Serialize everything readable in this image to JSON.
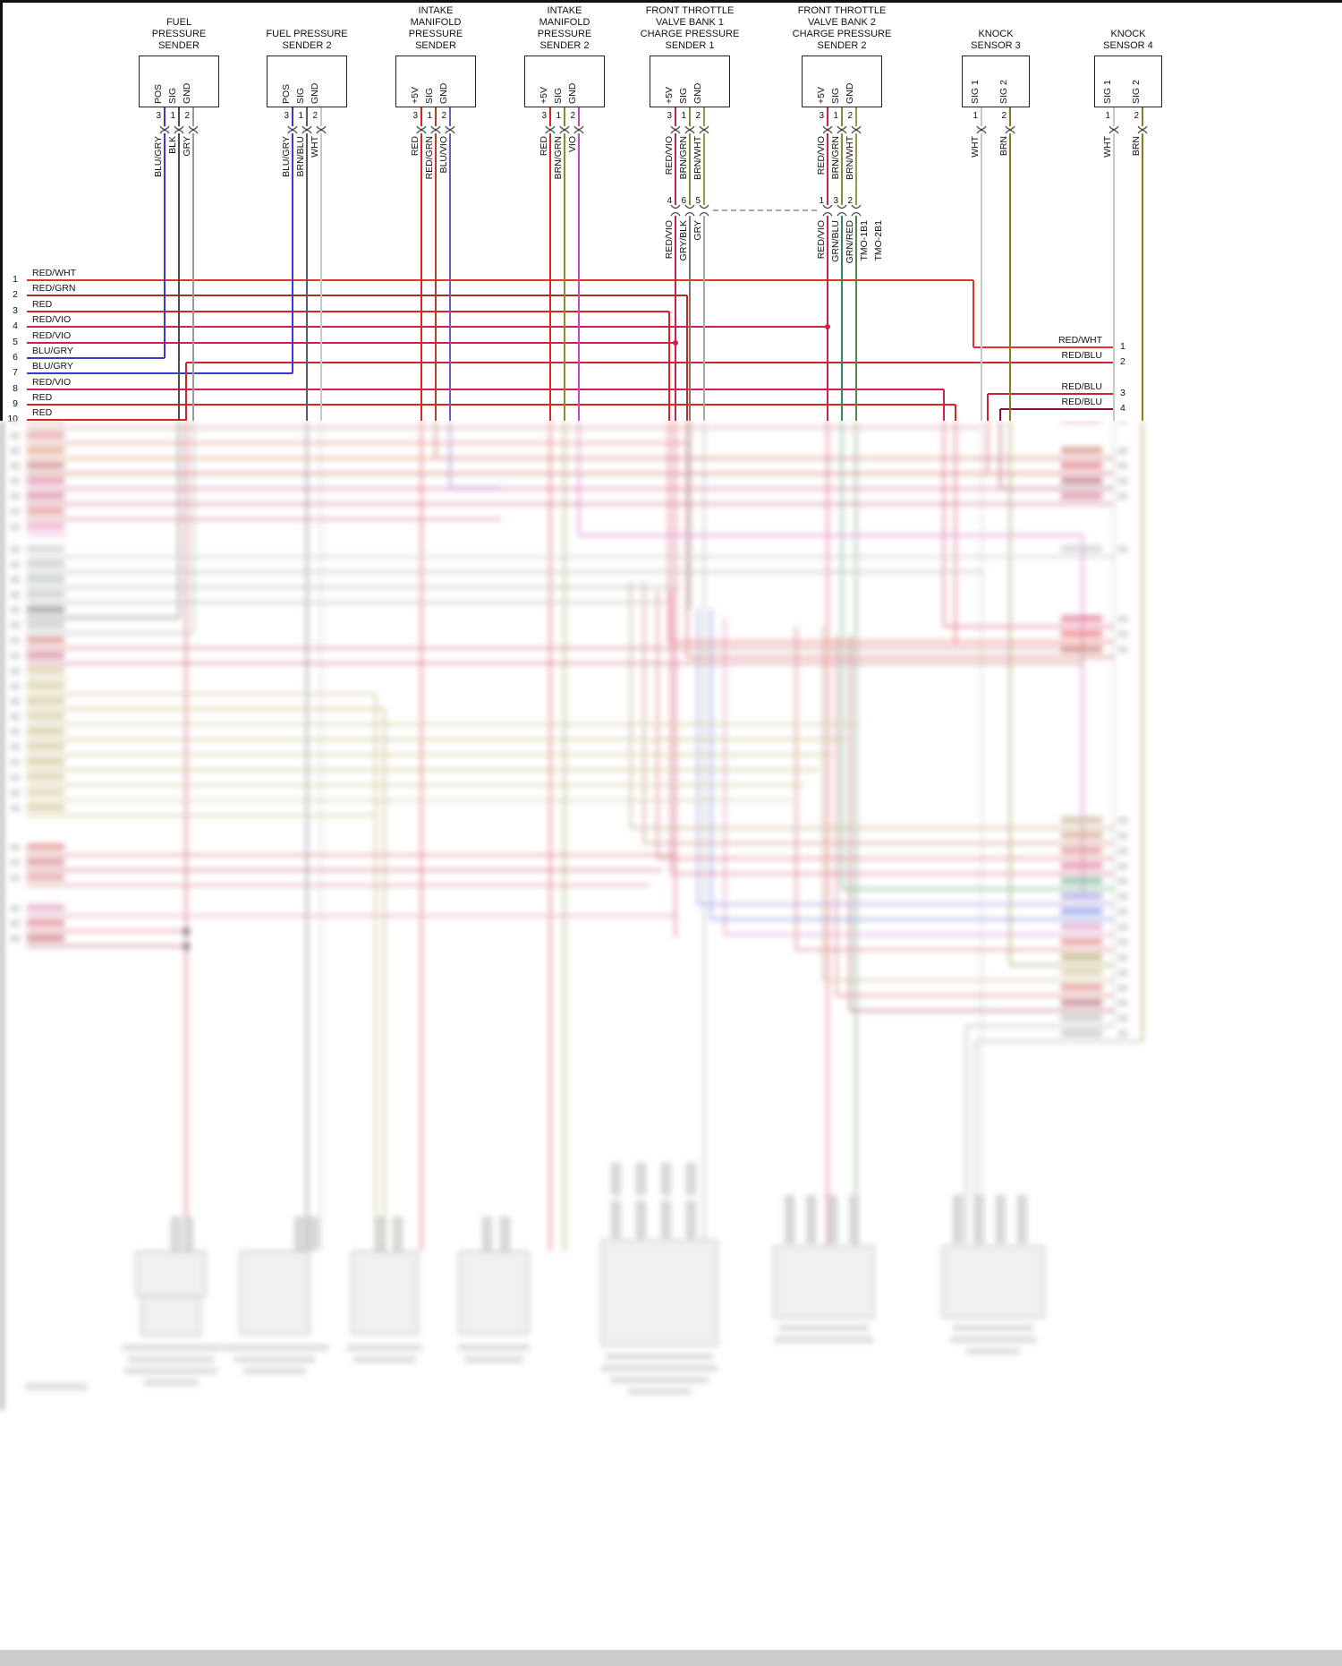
{
  "page": {
    "background": "#ffffff",
    "border_color": "#111111"
  },
  "diagram": {
    "connectors": [
      {
        "name": "FUEL PRESSURE SENDER",
        "title_lines": [
          "FUEL",
          "PRESSURE",
          "SENDER"
        ],
        "pins": [
          {
            "label": "POS",
            "number": "3",
            "wire": "BLU/GRY",
            "color": "#3a3acc"
          },
          {
            "label": "SIG",
            "number": "1",
            "wire": "BLK",
            "color": "#4a4a4a"
          },
          {
            "label": "GND",
            "number": "2",
            "wire": "GRY",
            "color": "#9a9a9a"
          }
        ]
      },
      {
        "name": "FUEL PRESSURE SENDER 2",
        "title_lines": [
          "FUEL PRESSURE",
          "SENDER 2"
        ],
        "pins": [
          {
            "label": "POS",
            "number": "3",
            "wire": "BLU/GRY",
            "color": "#3a3acc"
          },
          {
            "label": "SIG",
            "number": "1",
            "wire": "BRN/BLU",
            "color": "#555a70"
          },
          {
            "label": "GND",
            "number": "2",
            "wire": "WHT",
            "color": "#c8c8c8"
          }
        ]
      },
      {
        "name": "INTAKE MANIFOLD PRESSURE SENDER",
        "title_lines": [
          "INTAKE",
          "MANIFOLD",
          "PRESSURE",
          "SENDER"
        ],
        "pins": [
          {
            "label": "+5V",
            "number": "3",
            "wire": "RED",
            "color": "#dd2222"
          },
          {
            "label": "SIG",
            "number": "1",
            "wire": "RED/GRN",
            "color": "#b43c28"
          },
          {
            "label": "GND",
            "number": "2",
            "wire": "BLU/VIO",
            "color": "#7755cc"
          }
        ]
      },
      {
        "name": "INTAKE MANIFOLD PRESSURE SENDER 2",
        "title_lines": [
          "INTAKE",
          "MANIFOLD",
          "PRESSURE",
          "SENDER 2"
        ],
        "pins": [
          {
            "label": "+5V",
            "number": "3",
            "wire": "RED",
            "color": "#dd2222"
          },
          {
            "label": "SIG",
            "number": "1",
            "wire": "BRN/GRN",
            "color": "#8a8a30"
          },
          {
            "label": "GND",
            "number": "2",
            "wire": "VIO",
            "color": "#cc44bb"
          }
        ]
      },
      {
        "name": "FRONT THROTTLE VALVE BANK 1 CHARGE PRESSURE SENDER 1",
        "title_lines": [
          "FRONT THROTTLE",
          "VALVE BANK 1",
          "CHARGE PRESSURE",
          "SENDER 1"
        ],
        "pins": [
          {
            "label": "+5V",
            "number": "3",
            "wire": "RED/VIO",
            "color": "#cc2244"
          },
          {
            "label": "SIG",
            "number": "1",
            "wire": "BRN/GRN",
            "color": "#8a8a30"
          },
          {
            "label": "GND",
            "number": "2",
            "wire": "BRN/WHT",
            "color": "#9a9a40"
          }
        ],
        "inline_pins": [
          {
            "number": "4",
            "wire": "RED/VIO",
            "color": "#cc2244"
          },
          {
            "number": "6",
            "wire": "GRY/BLK",
            "color": "#777777"
          },
          {
            "number": "5",
            "wire": "GRY",
            "color": "#a8a8a8"
          }
        ]
      },
      {
        "name": "FRONT THROTTLE VALVE BANK 2 CHARGE PRESSURE SENDER 2",
        "title_lines": [
          "FRONT THROTTLE",
          "VALVE BANK 2",
          "CHARGE PRESSURE",
          "SENDER 2"
        ],
        "pins": [
          {
            "label": "+5V",
            "number": "3",
            "wire": "RED/VIO",
            "color": "#cc2244"
          },
          {
            "label": "SIG",
            "number": "1",
            "wire": "BRN/GRN",
            "color": "#8a8a30"
          },
          {
            "label": "GND",
            "number": "2",
            "wire": "BRN/WHT",
            "color": "#9a9a40"
          }
        ],
        "inline_pins": [
          {
            "number": "1",
            "wire": "RED/VIO",
            "color": "#cc2244"
          },
          {
            "number": "3",
            "wire": "GRN/BLU",
            "color": "#2e8b57"
          },
          {
            "number": "2",
            "wire": "GRN/RED",
            "color": "#4a8a4a"
          }
        ],
        "tags": [
          "TMO-1B1",
          "TMO-2B1"
        ]
      },
      {
        "name": "KNOCK SENSOR 3",
        "title_lines": [
          "KNOCK",
          "SENSOR 3"
        ],
        "pins": [
          {
            "label": "SIG 1",
            "number": "1",
            "wire": "WHT",
            "color": "#c8c8c8"
          },
          {
            "label": "SIG 2",
            "number": "2",
            "wire": "BRN",
            "color": "#8a7a20"
          }
        ]
      },
      {
        "name": "KNOCK SENSOR 4",
        "title_lines": [
          "KNOCK",
          "SENSOR 4"
        ],
        "pins": [
          {
            "label": "SIG 1",
            "number": "1",
            "wire": "WHT",
            "color": "#c8c8c8"
          },
          {
            "label": "SIG 2",
            "number": "2",
            "wire": "BRN",
            "color": "#8a7a20"
          }
        ]
      }
    ],
    "left_bus": [
      {
        "n": "1",
        "label": "RED/WHT",
        "color": "#e03030"
      },
      {
        "n": "2",
        "label": "RED/GRN",
        "color": "#b03020"
      },
      {
        "n": "3",
        "label": "RED",
        "color": "#dd2222"
      },
      {
        "n": "4",
        "label": "RED/VIO",
        "color": "#d02050"
      },
      {
        "n": "5",
        "label": "RED/VIO",
        "color": "#d02050"
      },
      {
        "n": "6",
        "label": "BLU/GRY",
        "color": "#3a3acc"
      },
      {
        "n": "7",
        "label": "BLU/GRY",
        "color": "#3a3acc"
      },
      {
        "n": "8",
        "label": "RED/VIO",
        "color": "#d02050"
      },
      {
        "n": "9",
        "label": "RED",
        "color": "#dd2222"
      },
      {
        "n": "10",
        "label": "RED",
        "color": "#dd2222"
      }
    ],
    "right_exits": [
      {
        "number": "1",
        "label": "RED/WHT",
        "color": "#e03030"
      },
      {
        "number": "2",
        "label": "RED/BLU",
        "color": "#cc2233"
      },
      {
        "number": "3",
        "label": "RED/BLU",
        "color": "#cc2233"
      },
      {
        "number": "4",
        "label": "RED/BLU",
        "color": "#881133"
      }
    ]
  }
}
